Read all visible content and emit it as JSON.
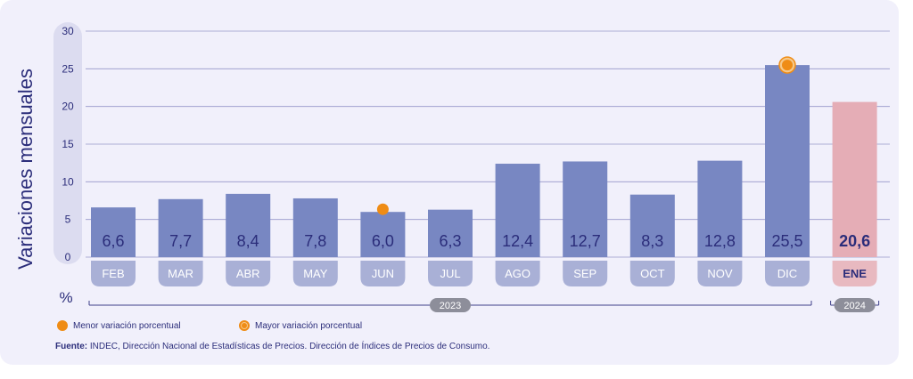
{
  "chart_data": {
    "type": "bar",
    "ylabel": "Variaciones mensuales",
    "unit_label": "%",
    "ylim": [
      0,
      30
    ],
    "yticks": [
      "0",
      "5",
      "10",
      "15",
      "20",
      "25",
      "30"
    ],
    "grid": true,
    "categories": [
      "FEB",
      "MAR",
      "ABR",
      "MAY",
      "JUN",
      "JUL",
      "AGO",
      "SEP",
      "OCT",
      "NOV",
      "DIC",
      "ENE"
    ],
    "values": [
      6.6,
      7.7,
      8.4,
      7.8,
      6.0,
      6.3,
      12.4,
      12.7,
      8.3,
      12.8,
      25.5,
      20.6
    ],
    "value_labels": [
      "6,6",
      "7,7",
      "8,4",
      "7,8",
      "6,0",
      "6,3",
      "12,4",
      "12,7",
      "8,3",
      "12,8",
      "25,5",
      "20,6"
    ],
    "year_groups": [
      {
        "label": "2023",
        "from": 0,
        "to": 10
      },
      {
        "label": "2024",
        "from": 11,
        "to": 11
      }
    ],
    "min_marker_index": 4,
    "max_marker_index": 10,
    "colors": {
      "bar": "#7887c2",
      "bar_highlight": "#e5adb6",
      "label_pill": "#a9b0d6",
      "label_pill_highlight": "#e8b9c0",
      "marker": "#ef8c15",
      "text": "#2b2d7a"
    }
  },
  "legend": {
    "min_label": "Menor variación porcentual",
    "max_label": "Mayor variación porcentual"
  },
  "source": {
    "prefix": "Fuente:",
    "text": " INDEC, Dirección Nacional de Estadísticas de Precios. Dirección de Índices de Precios de Consumo."
  }
}
